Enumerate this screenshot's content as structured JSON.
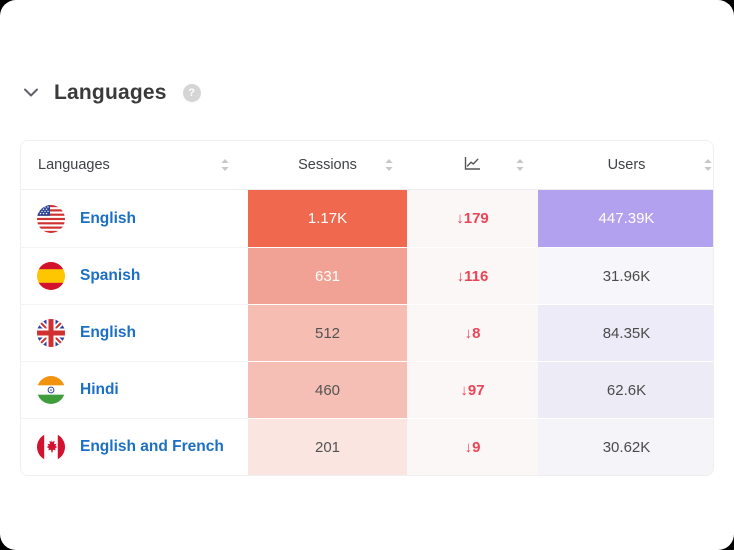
{
  "section": {
    "title": "Languages",
    "help_label": "?"
  },
  "table": {
    "columns": [
      {
        "id": "languages",
        "label": "Languages"
      },
      {
        "id": "sessions",
        "label": "Sessions"
      },
      {
        "id": "trend",
        "label": "",
        "icon": "line-chart-icon"
      },
      {
        "id": "users",
        "label": "Users"
      }
    ],
    "rows": [
      {
        "flag": "us-flag",
        "language": "English",
        "sessions": "1.17K",
        "sessions_bg": "#F0684D",
        "sessions_color": "#FFFFFF",
        "trend": "↓179",
        "trend_bg": "#FCF7F7",
        "users": "447.39K",
        "users_bg": "#B1A1EF",
        "users_color": "#FFFFFF"
      },
      {
        "flag": "spain-flag",
        "language": "Spanish",
        "sessions": "631",
        "sessions_bg": "#F2A294",
        "sessions_color": "#FFFFFF",
        "trend": "↓116",
        "trend_bg": "#FCF7F7",
        "users": "31.96K",
        "users_bg": "#F7F7FB",
        "users_color": "#4B4B4B"
      },
      {
        "flag": "uk-flag",
        "language": "English",
        "sessions": "512",
        "sessions_bg": "#F6BDB3",
        "sessions_color": "#535353",
        "trend": "↓8",
        "trend_bg": "#FCF7F7",
        "users": "84.35K",
        "users_bg": "#EDEBF7",
        "users_color": "#4B4B4B"
      },
      {
        "flag": "india-flag",
        "language": "Hindi",
        "sessions": "460",
        "sessions_bg": "#F6BFB5",
        "sessions_color": "#535353",
        "trend": "↓97",
        "trend_bg": "#FCF7F7",
        "users": "62.6K",
        "users_bg": "#EDEBF6",
        "users_color": "#4B4B4B"
      },
      {
        "flag": "canada-flag",
        "language": "English and French",
        "sessions": "201",
        "sessions_bg": "#FBE5E0",
        "sessions_color": "#535353",
        "trend": "↓9",
        "trend_bg": "#FCF7F7",
        "users": "30.62K",
        "users_bg": "#F4F4F9",
        "users_color": "#4B4B4B"
      }
    ]
  },
  "colors": {
    "link_blue": "#1B6FC5",
    "trend_red": "#EA4456",
    "heat_max_sessions": "#F0684D",
    "heat_max_users": "#B1A1EF",
    "title_text": "#3A3A3A"
  }
}
